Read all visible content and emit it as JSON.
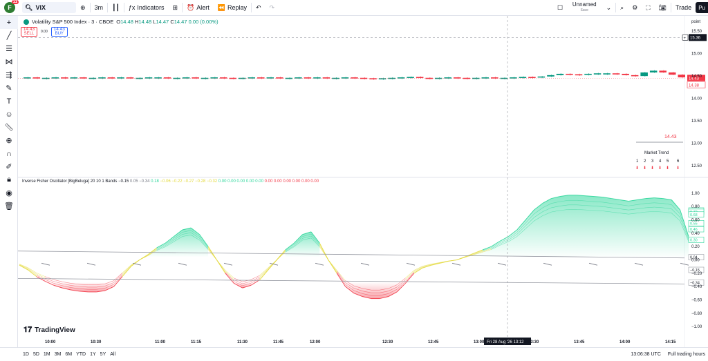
{
  "topbar": {
    "avatar_letter": "F",
    "avatar_badge": "11",
    "symbol": "VIX",
    "interval": "3m",
    "indicators_label": "Indicators",
    "alert_label": "Alert",
    "replay_label": "Replay",
    "layout_name": "Unnamed",
    "layout_sub": "Save",
    "trade_label": "Trade",
    "publish_label": "Pu"
  },
  "legend": {
    "title": "Volatility S&P 500 Index · 3 · CBOE",
    "o_lbl": "O",
    "o": "14.48",
    "h_lbl": "H",
    "h": "14.48",
    "l_lbl": "L",
    "l": "14.47",
    "c_lbl": "C",
    "c": "14.47",
    "chg": "0.00 (0.00%)",
    "sell_price": "14.43",
    "sell_label": "SELL",
    "spread": "0.00",
    "buy_price": "14.43",
    "buy_label": "BUY"
  },
  "price_axis": {
    "header": "point",
    "labels": [
      "15.50",
      "15.00",
      "14.50",
      "14.00",
      "13.50",
      "13.00",
      "12.50"
    ],
    "crosshair_label": "15.36",
    "current_label": "14.43",
    "current_label_2": "14.38",
    "crosshair_value": 15.36,
    "ymin": 12.3,
    "ymax": 15.75
  },
  "market_trend": {
    "price": "14.43",
    "title": "Market Trend",
    "cols": [
      "1",
      "2",
      "3",
      "4",
      "5",
      "6"
    ],
    "arrow": "⬇"
  },
  "oscillator": {
    "legend_name": "Inverse Fisher Oscillator [BigBeluga] 20 10 1 Bands",
    "legend_vals": [
      {
        "v": "−0.15",
        "c": "#131722"
      },
      {
        "v": "0.05",
        "c": "#787b86"
      },
      {
        "v": "−0.34",
        "c": "#787b86"
      },
      {
        "v": "0.18",
        "c": "#2bd69a"
      },
      {
        "v": "−0.06",
        "c": "#e3d93b"
      },
      {
        "v": "−0.22",
        "c": "#e3d93b"
      },
      {
        "v": "−0.27",
        "c": "#e3d93b"
      },
      {
        "v": "−0.28",
        "c": "#e3d93b"
      },
      {
        "v": "−0.32",
        "c": "#e3d93b"
      },
      {
        "v": "0.00",
        "c": "#2bd69a"
      },
      {
        "v": "0.00",
        "c": "#2bd69a"
      },
      {
        "v": "0.00",
        "c": "#2bd69a"
      },
      {
        "v": "0.00",
        "c": "#2bd69a"
      },
      {
        "v": "0.00",
        "c": "#2bd69a"
      },
      {
        "v": "0.00",
        "c": "#f23645"
      },
      {
        "v": "0.00",
        "c": "#f23645"
      },
      {
        "v": "0.00",
        "c": "#f23645"
      },
      {
        "v": "0.00",
        "c": "#f23645"
      },
      {
        "v": "0.00",
        "c": "#f23645"
      },
      {
        "v": "0.00",
        "c": "#f23645"
      }
    ],
    "axis_labels": [
      "1.00",
      "0.80",
      "0.60",
      "0.40",
      "0.20",
      "0.00",
      "−0.20",
      "−0.40",
      "−0.60",
      "−0.80",
      "−1.00"
    ],
    "axis_values": [
      1.0,
      0.8,
      0.6,
      0.4,
      0.2,
      0.0,
      -0.2,
      -0.4,
      -0.6,
      -0.8,
      -1.0
    ],
    "right_tags": [
      "0.74",
      "0.72",
      "0.68",
      "0.55",
      "0.46",
      "0.30",
      "0.04",
      "−0.15",
      "−0.34"
    ],
    "right_tag_values": [
      0.74,
      0.72,
      0.68,
      0.55,
      0.46,
      0.3,
      0.04,
      -0.15,
      -0.34
    ]
  },
  "time_axis": {
    "labels": [
      "10:00",
      "10:30",
      "11:00",
      "11:15",
      "11:30",
      "11:45",
      "12:00",
      "12:30",
      "12:45",
      "13:00",
      "13:30",
      "13:45",
      "14:00",
      "14:15"
    ],
    "crosshair_label": "Fri 28 Aug '26   13:12"
  },
  "bottombar": {
    "ranges": [
      "1D",
      "5D",
      "1M",
      "3M",
      "6M",
      "YTD",
      "1Y",
      "5Y",
      "All"
    ],
    "clock": "13:06:38 UTC",
    "session": "Full trading hours"
  },
  "branding": {
    "logo_text": "TradingView"
  },
  "colors": {
    "up": "#089981",
    "down": "#f23645",
    "osc_green": "#2bd69a",
    "osc_red": "#f23645",
    "osc_yellow": "#e3d93b"
  },
  "chart_data": {
    "type": "line",
    "price_candles_close": [
      14.47,
      14.46,
      14.46,
      14.47,
      14.46,
      14.47,
      14.46,
      14.46,
      14.47,
      14.46,
      14.47,
      14.46,
      14.46,
      14.47,
      14.47,
      14.46,
      14.46,
      14.47,
      14.46,
      14.46,
      14.47,
      14.46,
      14.45,
      14.46,
      14.47,
      14.46,
      14.47,
      14.46,
      14.46,
      14.47,
      14.46,
      14.47,
      14.46,
      14.46,
      14.47,
      14.46,
      14.45,
      14.44,
      14.45,
      14.46,
      14.47,
      14.48,
      14.46,
      14.45,
      14.46,
      14.47,
      14.46,
      14.45,
      14.46,
      14.47,
      14.46,
      14.46,
      14.47,
      14.48,
      14.47,
      14.49,
      14.52,
      14.55,
      14.54,
      14.53,
      14.55,
      14.56,
      14.56,
      14.55,
      14.52,
      14.5,
      14.58,
      14.62,
      14.58,
      14.53,
      14.47
    ],
    "oscillator_main": [
      -0.08,
      -0.15,
      -0.25,
      -0.32,
      -0.38,
      -0.42,
      -0.45,
      -0.47,
      -0.48,
      -0.48,
      -0.46,
      -0.4,
      -0.25,
      -0.1,
      0.0,
      0.08,
      0.18,
      0.25,
      0.35,
      0.45,
      0.48,
      0.38,
      0.2,
      0.0,
      -0.2,
      -0.35,
      -0.42,
      -0.38,
      -0.3,
      -0.15,
      0.0,
      0.15,
      0.25,
      0.38,
      0.42,
      0.25,
      0.0,
      -0.2,
      -0.4,
      -0.5,
      -0.55,
      -0.58,
      -0.58,
      -0.55,
      -0.48,
      -0.35,
      -0.2,
      -0.12,
      -0.08,
      -0.05,
      -0.02,
      0.0,
      0.05,
      0.1,
      0.15,
      0.2,
      0.28,
      0.35,
      0.45,
      0.6,
      0.75,
      0.85,
      0.92,
      0.95,
      0.97,
      0.97,
      0.96,
      0.95,
      0.94,
      0.92,
      0.9,
      0.88,
      0.9,
      0.92,
      0.93,
      0.92,
      0.9,
      0.75,
      0.35
    ],
    "oscillator_upper_band": 0.05,
    "oscillator_lower_band": -0.34
  }
}
